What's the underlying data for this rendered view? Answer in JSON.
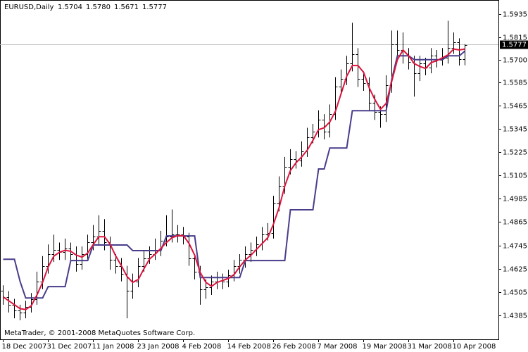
{
  "chart_data": {
    "type": "ohlc",
    "symbol": "EURUSD,Daily",
    "header_values": [
      "1.5704",
      "1.5780",
      "1.5671",
      "1.5777"
    ],
    "footer": "MetaTrader, © 2001-2008 MetaQuotes Software Corp.",
    "categories": [
      "18 Dec 2007",
      null,
      null,
      null,
      null,
      null,
      null,
      null,
      "31 Dec 2007",
      null,
      null,
      null,
      null,
      null,
      null,
      null,
      "11 Jan 2008",
      null,
      null,
      null,
      null,
      null,
      null,
      null,
      "23 Jan 2008",
      null,
      null,
      null,
      null,
      null,
      null,
      null,
      "4 Feb 2008",
      null,
      null,
      null,
      null,
      null,
      null,
      null,
      "14 Feb 2008",
      null,
      null,
      null,
      null,
      null,
      null,
      null,
      "26 Feb 2008",
      null,
      null,
      null,
      null,
      null,
      null,
      null,
      "7 Mar 2008",
      null,
      null,
      null,
      null,
      null,
      null,
      null,
      "19 Mar 2008",
      null,
      null,
      null,
      null,
      null,
      null,
      null,
      "31 Mar 2008",
      null,
      null,
      null,
      null,
      null,
      null,
      null,
      "10 Apr 2008",
      null,
      null
    ],
    "open": [
      1.451,
      1.448,
      1.444,
      1.441,
      1.44,
      1.443,
      1.447,
      1.456,
      1.464,
      1.47,
      1.472,
      1.471,
      1.473,
      1.47,
      1.465,
      1.47,
      1.476,
      1.479,
      1.482,
      1.476,
      1.467,
      1.464,
      1.46,
      1.451,
      1.456,
      1.464,
      1.468,
      1.47,
      1.472,
      1.477,
      1.479,
      1.48,
      1.48,
      1.479,
      1.468,
      1.461,
      1.452,
      1.453,
      1.456,
      1.458,
      1.456,
      1.459,
      1.464,
      1.467,
      1.47,
      1.472,
      1.475,
      1.48,
      1.481,
      1.496,
      1.505,
      1.515,
      1.519,
      1.518,
      1.523,
      1.53,
      1.533,
      1.539,
      1.533,
      1.542,
      1.556,
      1.56,
      1.568,
      1.573,
      1.56,
      1.558,
      1.548,
      1.543,
      1.542,
      1.557,
      1.578,
      1.575,
      1.572,
      1.569,
      1.563,
      1.568,
      1.566,
      1.572,
      1.57,
      1.571,
      1.576,
      1.579,
      1.5704
    ],
    "high": [
      1.454,
      1.451,
      1.447,
      1.444,
      1.446,
      1.45,
      1.461,
      1.469,
      1.475,
      1.48,
      1.476,
      1.478,
      1.476,
      1.474,
      1.474,
      1.48,
      1.485,
      1.49,
      1.488,
      1.479,
      1.47,
      1.468,
      1.464,
      1.46,
      1.468,
      1.472,
      1.474,
      1.478,
      1.482,
      1.49,
      1.493,
      1.485,
      1.484,
      1.481,
      1.47,
      1.464,
      1.457,
      1.459,
      1.461,
      1.46,
      1.462,
      1.467,
      1.47,
      1.474,
      1.476,
      1.479,
      1.484,
      1.486,
      1.5,
      1.51,
      1.52,
      1.524,
      1.523,
      1.528,
      1.535,
      1.537,
      1.544,
      1.542,
      1.547,
      1.561,
      1.565,
      1.572,
      1.589,
      1.576,
      1.564,
      1.561,
      1.552,
      1.546,
      1.562,
      1.585,
      1.585,
      1.584,
      1.576,
      1.572,
      1.572,
      1.571,
      1.576,
      1.575,
      1.576,
      1.59,
      1.584,
      1.581,
      1.578
    ],
    "low": [
      1.444,
      1.44,
      1.437,
      1.436,
      1.437,
      1.44,
      1.444,
      1.452,
      1.46,
      1.466,
      1.467,
      1.467,
      1.466,
      1.461,
      1.462,
      1.467,
      1.472,
      1.475,
      1.472,
      1.462,
      1.46,
      1.456,
      1.437,
      1.447,
      1.453,
      1.461,
      1.465,
      1.467,
      1.469,
      1.474,
      1.476,
      1.476,
      1.475,
      1.464,
      1.457,
      1.444,
      1.447,
      1.449,
      1.452,
      1.452,
      1.453,
      1.456,
      1.46,
      1.463,
      1.466,
      1.469,
      1.472,
      1.477,
      1.478,
      1.492,
      1.501,
      1.511,
      1.514,
      1.515,
      1.52,
      1.527,
      1.53,
      1.529,
      1.53,
      1.539,
      1.552,
      1.557,
      1.564,
      1.556,
      1.554,
      1.544,
      1.539,
      1.535,
      1.538,
      1.553,
      1.571,
      1.568,
      1.565,
      1.551,
      1.559,
      1.562,
      1.563,
      1.566,
      1.567,
      1.568,
      1.573,
      1.567,
      1.5671
    ],
    "close": [
      1.448,
      1.444,
      1.441,
      1.44,
      1.443,
      1.447,
      1.456,
      1.464,
      1.47,
      1.472,
      1.471,
      1.473,
      1.47,
      1.465,
      1.47,
      1.476,
      1.479,
      1.482,
      1.476,
      1.467,
      1.464,
      1.46,
      1.451,
      1.456,
      1.464,
      1.468,
      1.47,
      1.472,
      1.477,
      1.479,
      1.48,
      1.48,
      1.479,
      1.468,
      1.461,
      1.452,
      1.453,
      1.456,
      1.458,
      1.456,
      1.459,
      1.464,
      1.467,
      1.47,
      1.472,
      1.475,
      1.48,
      1.481,
      1.496,
      1.505,
      1.515,
      1.519,
      1.518,
      1.523,
      1.53,
      1.533,
      1.539,
      1.533,
      1.542,
      1.556,
      1.56,
      1.568,
      1.573,
      1.56,
      1.558,
      1.548,
      1.543,
      1.542,
      1.557,
      1.578,
      1.575,
      1.572,
      1.569,
      1.563,
      1.568,
      1.566,
      1.572,
      1.57,
      1.571,
      1.576,
      1.579,
      1.5704,
      1.5777
    ],
    "bar_color": "#000000",
    "lines": [
      {
        "color": "#483d8b",
        "values": [
          1.4674,
          1.4674,
          1.4674,
          1.456,
          1.4475,
          1.4475,
          1.4475,
          1.4475,
          1.4533,
          1.4533,
          1.4533,
          1.4533,
          1.4667,
          1.4667,
          1.4667,
          1.4667,
          1.4747,
          1.4747,
          1.4747,
          1.4747,
          1.4747,
          1.4747,
          1.4747,
          1.4718,
          1.4718,
          1.4718,
          1.4718,
          1.4718,
          1.4718,
          1.4794,
          1.4794,
          1.4794,
          1.4794,
          1.4794,
          1.4794,
          1.458,
          1.458,
          1.458,
          1.458,
          1.458,
          1.458,
          1.458,
          1.458,
          1.4667,
          1.4667,
          1.4667,
          1.4667,
          1.4667,
          1.4667,
          1.4667,
          1.4667,
          1.4928,
          1.4928,
          1.4928,
          1.4928,
          1.4928,
          1.5138,
          1.5138,
          1.5246,
          1.5246,
          1.5246,
          1.5246,
          1.5438,
          1.5438,
          1.5438,
          1.5438,
          1.5438,
          1.5438,
          1.5438,
          1.56,
          1.572,
          1.572,
          1.572,
          1.57,
          1.57,
          1.57,
          1.57,
          1.57,
          1.57,
          1.572,
          1.572,
          1.572,
          1.5745
        ]
      },
      {
        "color": "#dc143c",
        "values": [
          1.448,
          1.446,
          1.444,
          1.442,
          1.4415,
          1.4435,
          1.449,
          1.4555,
          1.4635,
          1.469,
          1.471,
          1.472,
          1.4715,
          1.4695,
          1.4685,
          1.4705,
          1.475,
          1.479,
          1.479,
          1.475,
          1.469,
          1.464,
          1.4585,
          1.4555,
          1.457,
          1.4625,
          1.4675,
          1.47,
          1.473,
          1.476,
          1.4785,
          1.4795,
          1.4795,
          1.4755,
          1.4695,
          1.4605,
          1.4555,
          1.4535,
          1.4555,
          1.4565,
          1.4575,
          1.4595,
          1.4635,
          1.467,
          1.4695,
          1.4725,
          1.4755,
          1.4785,
          1.4855,
          1.494,
          1.505,
          1.513,
          1.517,
          1.52,
          1.5235,
          1.5285,
          1.534,
          1.535,
          1.538,
          1.5435,
          1.5525,
          1.5615,
          1.567,
          1.567,
          1.5635,
          1.5555,
          1.5495,
          1.5445,
          1.5475,
          1.559,
          1.57,
          1.575,
          1.572,
          1.568,
          1.5665,
          1.5655,
          1.5685,
          1.5695,
          1.571,
          1.5725,
          1.5755,
          1.575,
          1.5755
        ]
      }
    ],
    "price_line_color": "#c0c0c0",
    "ylim": [
      1.4262,
      1.6007
    ],
    "yticks": [
      1.4385,
      1.4505,
      1.4625,
      1.4745,
      1.4865,
      1.4985,
      1.5105,
      1.5225,
      1.5345,
      1.5465,
      1.5585,
      {
        "value": 1.57,
        "label": "1.5700"
      },
      1.5815,
      1.5935
    ],
    "grid": false
  }
}
